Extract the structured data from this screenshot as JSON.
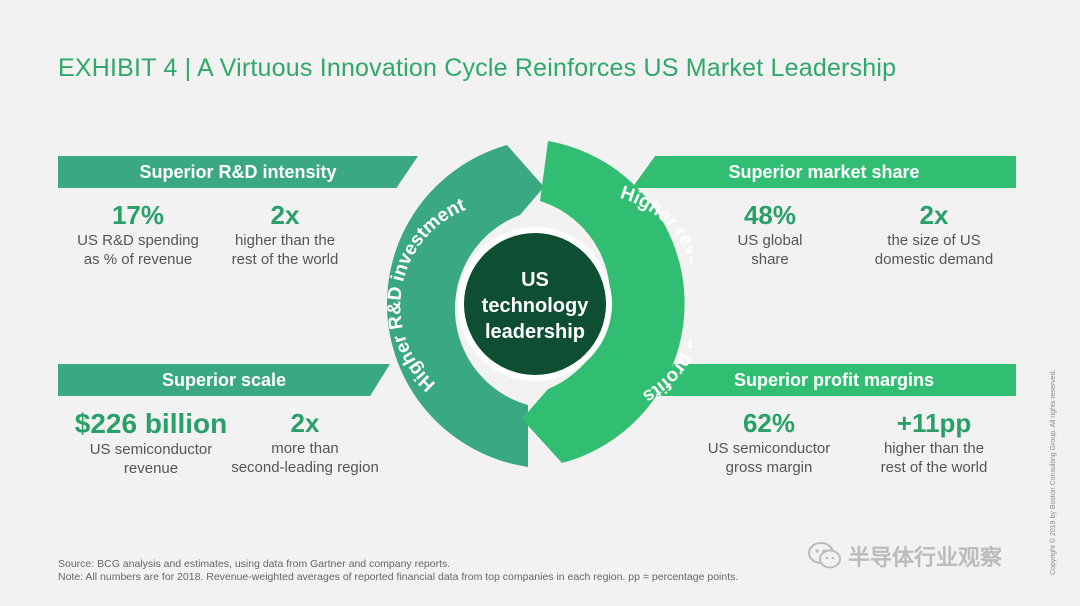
{
  "title": "EXHIBIT 4 | A Virtuous Innovation Cycle Reinforces US Market Leadership",
  "panels": {
    "rd_intensity": {
      "label": "Superior R&D intensity",
      "stats": [
        {
          "value": "17%",
          "desc1": "US R&D spending",
          "desc2": "as % of revenue"
        },
        {
          "value": "2x",
          "desc1": "higher than the",
          "desc2": "rest of the world"
        }
      ]
    },
    "scale": {
      "label": "Superior scale",
      "stats": [
        {
          "value": "$226 billion",
          "desc1": "US semiconductor",
          "desc2": "revenue"
        },
        {
          "value": "2x",
          "desc1": "more than",
          "desc2": "second-leading region"
        }
      ]
    },
    "market_share": {
      "label": "Superior market share",
      "stats": [
        {
          "value": "48%",
          "desc1": "US global",
          "desc2": "share"
        },
        {
          "value": "2x",
          "desc1": "the size of US",
          "desc2": "domestic demand"
        }
      ]
    },
    "profit_margins": {
      "label": "Superior profit margins",
      "stats": [
        {
          "value": "62%",
          "desc1": "US semiconductor",
          "desc2": "gross margin"
        },
        {
          "value": "+11pp",
          "desc1": "higher than the",
          "desc2": "rest of the world"
        }
      ]
    }
  },
  "cycle": {
    "left_arc": "Higher R&D investment",
    "right_arc": "Higher revenues and profits",
    "center_line1": "US",
    "center_line2": "technology",
    "center_line3": "leadership"
  },
  "footer": {
    "source": "Source: BCG analysis and estimates, using data from Gartner and company reports.",
    "note": "Note: All numbers are for 2018. Revenue-weighted averages of reported financial data from top companies in each region. pp = percentage points."
  },
  "copyright": "Copyright © 2019 by Boston Consulting Group. All rights reserved.",
  "watermark": "半导体行业观察",
  "colors": {
    "left_green": "#3aa880",
    "right_green": "#32be72",
    "center_dark": "#0e4f33",
    "accent_text": "#2aa068"
  }
}
